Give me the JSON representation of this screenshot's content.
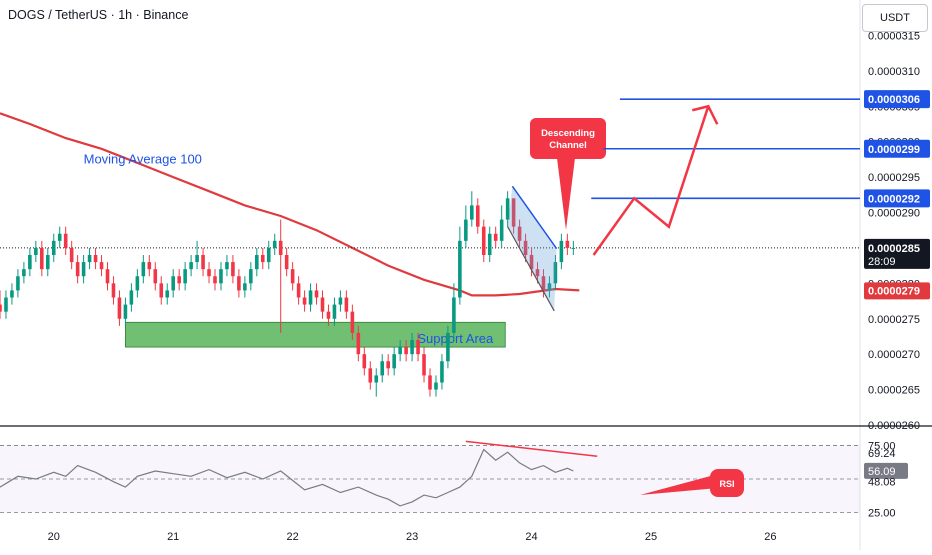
{
  "header": {
    "title": "DOGS / TetherUS · 1h · Binance"
  },
  "unit": "USDT",
  "chart_data": {
    "type": "candlestick",
    "price_ticks": [
      "0.0000315",
      "0.0000310",
      "0.0000305",
      "0.0000300",
      "0.0000295",
      "0.0000290",
      "0.0000285",
      "0.0000280",
      "0.0000275",
      "0.0000270",
      "0.0000265",
      "0.0000260"
    ],
    "price_tick_values": [
      3.15e-05,
      3.1e-05,
      3.05e-05,
      3e-05,
      2.95e-05,
      2.9e-05,
      2.85e-05,
      2.8e-05,
      2.75e-05,
      2.7e-05,
      2.65e-05,
      2.6e-05
    ],
    "ylim": [
      2.6e-05,
      3.2e-05
    ],
    "x_ticks": [
      "20",
      "21",
      "22",
      "23",
      "24",
      "25",
      "26"
    ],
    "x_tick_values": [
      20,
      21,
      22,
      23,
      24,
      25,
      26
    ],
    "xlim": [
      19.55,
      26.75
    ],
    "current_price": {
      "label": "0.0000285",
      "value": 2.85e-05,
      "countdown": "28:09",
      "color": "#089981"
    },
    "ma100": {
      "name": "Moving Average 100",
      "label": "0.0000279",
      "value": 2.79e-05,
      "color": "#e03a3e",
      "x": [
        19.55,
        19.8,
        20.1,
        20.4,
        20.7,
        21.0,
        21.3,
        21.6,
        21.9,
        22.2,
        22.5,
        22.8,
        23.1,
        23.4,
        23.5,
        23.7,
        23.9,
        24.2,
        24.4
      ],
      "y": [
        3.04e-05,
        3.025e-05,
        3.005e-05,
        2.99e-05,
        2.97e-05,
        2.95e-05,
        2.93e-05,
        2.91e-05,
        2.895e-05,
        2.875e-05,
        2.85e-05,
        2.825e-05,
        2.805e-05,
        2.79e-05,
        2.783e-05,
        2.783e-05,
        2.785e-05,
        2.792e-05,
        2.79e-05
      ]
    },
    "levels": [
      {
        "label": "0.0000306",
        "value": 3.06e-05,
        "x_from": 24.74,
        "x_to": 26.6,
        "color": "#1e53e5"
      },
      {
        "label": "0.0000299",
        "value": 2.99e-05,
        "x_from": 24.6,
        "x_to": 26.6,
        "color": "#1e53e5"
      },
      {
        "label": "0.0000292",
        "value": 2.92e-05,
        "x_from": 24.5,
        "x_to": 26.6,
        "color": "#1e53e5"
      }
    ],
    "support_area": {
      "label": "Support Area",
      "y_low": 2.71e-05,
      "y_high": 2.745e-05,
      "x_from": 20.6,
      "x_to": 23.78,
      "color": "#4caf50"
    },
    "descending_channel": {
      "label": "Descending Channel",
      "upper": [
        [
          23.84,
          2.937e-05
        ],
        [
          24.21,
          2.849e-05
        ]
      ],
      "lower": [
        [
          23.8,
          2.88e-05
        ],
        [
          24.19,
          2.761e-05
        ]
      ],
      "color": "#5b9bd5"
    },
    "projection": {
      "x": [
        24.52,
        24.86,
        25.15,
        25.48
      ],
      "y": [
        2.84e-05,
        2.92e-05,
        2.88e-05,
        3.05e-05
      ],
      "color": "#f23645"
    },
    "candles": {
      "x": [
        19.55,
        19.6,
        19.65,
        19.7,
        19.75,
        19.8,
        19.85,
        19.9,
        19.95,
        20.0,
        20.05,
        20.1,
        20.15,
        20.2,
        20.25,
        20.3,
        20.35,
        20.4,
        20.45,
        20.5,
        20.55,
        20.6,
        20.65,
        20.7,
        20.75,
        20.8,
        20.85,
        20.9,
        20.95,
        21.0,
        21.05,
        21.1,
        21.15,
        21.2,
        21.25,
        21.3,
        21.35,
        21.4,
        21.45,
        21.5,
        21.55,
        21.6,
        21.65,
        21.7,
        21.75,
        21.8,
        21.85,
        21.9,
        21.95,
        22.0,
        22.05,
        22.1,
        22.15,
        22.2,
        22.25,
        22.3,
        22.35,
        22.4,
        22.45,
        22.5,
        22.55,
        22.6,
        22.65,
        22.7,
        22.75,
        22.8,
        22.85,
        22.9,
        22.95,
        23.0,
        23.05,
        23.1,
        23.15,
        23.2,
        23.25,
        23.3,
        23.35,
        23.4,
        23.45,
        23.5,
        23.55,
        23.6,
        23.65,
        23.7,
        23.75,
        23.8,
        23.85,
        23.9,
        23.95,
        24.0,
        24.05,
        24.1,
        24.15,
        24.2,
        24.25,
        24.3,
        24.35
      ],
      "open": [
        2.77e-05,
        2.76e-05,
        2.78e-05,
        2.79e-05,
        2.81e-05,
        2.82e-05,
        2.84e-05,
        2.85e-05,
        2.82e-05,
        2.84e-05,
        2.86e-05,
        2.87e-05,
        2.85e-05,
        2.83e-05,
        2.81e-05,
        2.83e-05,
        2.84e-05,
        2.83e-05,
        2.82e-05,
        2.8e-05,
        2.78e-05,
        2.75e-05,
        2.77e-05,
        2.79e-05,
        2.81e-05,
        2.83e-05,
        2.82e-05,
        2.8e-05,
        2.78e-05,
        2.79e-05,
        2.81e-05,
        2.8e-05,
        2.82e-05,
        2.83e-05,
        2.84e-05,
        2.82e-05,
        2.81e-05,
        2.8e-05,
        2.82e-05,
        2.83e-05,
        2.81e-05,
        2.79e-05,
        2.8e-05,
        2.82e-05,
        2.84e-05,
        2.83e-05,
        2.85e-05,
        2.86e-05,
        2.84e-05,
        2.82e-05,
        2.8e-05,
        2.78e-05,
        2.77e-05,
        2.79e-05,
        2.78e-05,
        2.76e-05,
        2.75e-05,
        2.77e-05,
        2.78e-05,
        2.76e-05,
        2.73e-05,
        2.7e-05,
        2.68e-05,
        2.66e-05,
        2.67e-05,
        2.69e-05,
        2.68e-05,
        2.7e-05,
        2.71e-05,
        2.7e-05,
        2.72e-05,
        2.7e-05,
        2.67e-05,
        2.65e-05,
        2.66e-05,
        2.69e-05,
        2.73e-05,
        2.78e-05,
        2.86e-05,
        2.89e-05,
        2.91e-05,
        2.88e-05,
        2.84e-05,
        2.87e-05,
        2.86e-05,
        2.89e-05,
        2.92e-05,
        2.88e-05,
        2.86e-05,
        2.84e-05,
        2.82e-05,
        2.81e-05,
        2.79e-05,
        2.8e-05,
        2.83e-05,
        2.86e-05,
        2.85e-05
      ],
      "close": [
        2.76e-05,
        2.78e-05,
        2.79e-05,
        2.81e-05,
        2.82e-05,
        2.84e-05,
        2.85e-05,
        2.82e-05,
        2.84e-05,
        2.86e-05,
        2.87e-05,
        2.85e-05,
        2.83e-05,
        2.81e-05,
        2.83e-05,
        2.84e-05,
        2.83e-05,
        2.82e-05,
        2.8e-05,
        2.78e-05,
        2.75e-05,
        2.77e-05,
        2.79e-05,
        2.81e-05,
        2.83e-05,
        2.82e-05,
        2.8e-05,
        2.78e-05,
        2.79e-05,
        2.81e-05,
        2.8e-05,
        2.82e-05,
        2.83e-05,
        2.84e-05,
        2.82e-05,
        2.81e-05,
        2.8e-05,
        2.82e-05,
        2.83e-05,
        2.81e-05,
        2.79e-05,
        2.8e-05,
        2.82e-05,
        2.84e-05,
        2.83e-05,
        2.85e-05,
        2.86e-05,
        2.84e-05,
        2.82e-05,
        2.8e-05,
        2.78e-05,
        2.77e-05,
        2.79e-05,
        2.78e-05,
        2.76e-05,
        2.75e-05,
        2.77e-05,
        2.78e-05,
        2.76e-05,
        2.73e-05,
        2.7e-05,
        2.68e-05,
        2.66e-05,
        2.67e-05,
        2.69e-05,
        2.68e-05,
        2.7e-05,
        2.71e-05,
        2.7e-05,
        2.72e-05,
        2.7e-05,
        2.67e-05,
        2.65e-05,
        2.66e-05,
        2.69e-05,
        2.73e-05,
        2.78e-05,
        2.86e-05,
        2.89e-05,
        2.91e-05,
        2.88e-05,
        2.84e-05,
        2.87e-05,
        2.86e-05,
        2.89e-05,
        2.92e-05,
        2.88e-05,
        2.86e-05,
        2.84e-05,
        2.82e-05,
        2.81e-05,
        2.79e-05,
        2.8e-05,
        2.83e-05,
        2.86e-05,
        2.85e-05,
        2.85e-05
      ],
      "high": [
        2.79e-05,
        2.79e-05,
        2.8e-05,
        2.82e-05,
        2.83e-05,
        2.85e-05,
        2.86e-05,
        2.86e-05,
        2.85e-05,
        2.87e-05,
        2.88e-05,
        2.88e-05,
        2.86e-05,
        2.84e-05,
        2.84e-05,
        2.85e-05,
        2.85e-05,
        2.84e-05,
        2.83e-05,
        2.81e-05,
        2.79e-05,
        2.78e-05,
        2.8e-05,
        2.82e-05,
        2.84e-05,
        2.84e-05,
        2.83e-05,
        2.81e-05,
        2.8e-05,
        2.82e-05,
        2.82e-05,
        2.83e-05,
        2.84e-05,
        2.86e-05,
        2.85e-05,
        2.83e-05,
        2.82e-05,
        2.83e-05,
        2.84e-05,
        2.84e-05,
        2.82e-05,
        2.81e-05,
        2.83e-05,
        2.85e-05,
        2.85e-05,
        2.86e-05,
        2.87e-05,
        2.89e-05,
        2.85e-05,
        2.83e-05,
        2.81e-05,
        2.79e-05,
        2.8e-05,
        2.8e-05,
        2.79e-05,
        2.77e-05,
        2.78e-05,
        2.79e-05,
        2.79e-05,
        2.77e-05,
        2.74e-05,
        2.71e-05,
        2.69e-05,
        2.68e-05,
        2.7e-05,
        2.7e-05,
        2.71e-05,
        2.72e-05,
        2.72e-05,
        2.73e-05,
        2.73e-05,
        2.71e-05,
        2.68e-05,
        2.67e-05,
        2.7e-05,
        2.74e-05,
        2.8e-05,
        2.88e-05,
        2.91e-05,
        2.93e-05,
        2.92e-05,
        2.89e-05,
        2.88e-05,
        2.88e-05,
        2.91e-05,
        2.93e-05,
        2.92e-05,
        2.89e-05,
        2.87e-05,
        2.85e-05,
        2.83e-05,
        2.82e-05,
        2.81e-05,
        2.84e-05,
        2.87e-05,
        2.87e-05,
        2.86e-05
      ],
      "low": [
        2.75e-05,
        2.75e-05,
        2.77e-05,
        2.78e-05,
        2.8e-05,
        2.81e-05,
        2.83e-05,
        2.81e-05,
        2.81e-05,
        2.83e-05,
        2.85e-05,
        2.84e-05,
        2.82e-05,
        2.8e-05,
        2.8e-05,
        2.82e-05,
        2.82e-05,
        2.81e-05,
        2.79e-05,
        2.77e-05,
        2.74e-05,
        2.74e-05,
        2.76e-05,
        2.78e-05,
        2.8e-05,
        2.81e-05,
        2.79e-05,
        2.77e-05,
        2.77e-05,
        2.78e-05,
        2.79e-05,
        2.79e-05,
        2.81e-05,
        2.82e-05,
        2.81e-05,
        2.8e-05,
        2.79e-05,
        2.79e-05,
        2.81e-05,
        2.8e-05,
        2.78e-05,
        2.78e-05,
        2.79e-05,
        2.81e-05,
        2.82e-05,
        2.82e-05,
        2.84e-05,
        2.73e-05,
        2.81e-05,
        2.79e-05,
        2.77e-05,
        2.76e-05,
        2.76e-05,
        2.77e-05,
        2.75e-05,
        2.74e-05,
        2.74e-05,
        2.76e-05,
        2.75e-05,
        2.72e-05,
        2.69e-05,
        2.67e-05,
        2.65e-05,
        2.64e-05,
        2.66e-05,
        2.67e-05,
        2.67e-05,
        2.69e-05,
        2.69e-05,
        2.69e-05,
        2.69e-05,
        2.66e-05,
        2.64e-05,
        2.64e-05,
        2.65e-05,
        2.68e-05,
        2.72e-05,
        2.77e-05,
        2.85e-05,
        2.88e-05,
        2.87e-05,
        2.83e-05,
        2.83e-05,
        2.85e-05,
        2.85e-05,
        2.88e-05,
        2.87e-05,
        2.85e-05,
        2.83e-05,
        2.81e-05,
        2.8e-05,
        2.78e-05,
        2.78e-05,
        2.79e-05,
        2.82e-05,
        2.84e-05,
        2.84e-05
      ]
    },
    "rsi": {
      "name": "RSI",
      "ticks": [
        "75.00",
        "69.24",
        "56.09",
        "48.08",
        "25.00"
      ],
      "tick_values": [
        75,
        69.24,
        56.09,
        48.08,
        25
      ],
      "ylim": [
        18,
        88
      ],
      "current_label": "56.09",
      "x": [
        19.55,
        19.7,
        19.85,
        20.0,
        20.1,
        20.2,
        20.35,
        20.5,
        20.6,
        20.7,
        20.85,
        21.0,
        21.15,
        21.3,
        21.45,
        21.6,
        21.75,
        21.9,
        22.0,
        22.1,
        22.25,
        22.4,
        22.55,
        22.7,
        22.8,
        22.9,
        23.0,
        23.1,
        23.2,
        23.3,
        23.4,
        23.5,
        23.6,
        23.7,
        23.8,
        23.9,
        24.0,
        24.1,
        24.2,
        24.3,
        24.35
      ],
      "values": [
        44,
        52,
        50,
        55,
        52,
        60,
        55,
        48,
        44,
        52,
        56,
        54,
        52,
        57,
        51,
        55,
        50,
        56,
        49,
        42,
        46,
        40,
        44,
        38,
        35,
        30,
        33,
        38,
        36,
        40,
        44,
        52,
        72,
        64,
        70,
        62,
        57,
        60,
        55,
        58,
        56
      ],
      "color": "#787b86",
      "trendline": [
        [
          23.45,
          78
        ],
        [
          24.55,
          67
        ]
      ],
      "overbought": 75,
      "oversold": 25,
      "mid": 50
    },
    "annotations": [
      "Moving Average 100",
      "Descending Channel",
      "Support Area",
      "RSI"
    ]
  }
}
